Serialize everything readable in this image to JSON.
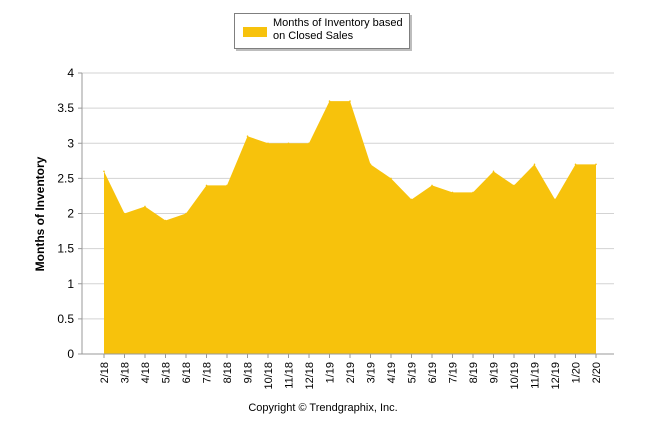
{
  "chart_data": {
    "type": "area",
    "ylabel": "Months of Inventory",
    "xlabel": "",
    "ylim": [
      0,
      4
    ],
    "yticks": [
      0,
      0.5,
      1,
      1.5,
      2,
      2.5,
      3,
      3.5,
      4
    ],
    "ytick_labels": [
      "0",
      "0.5",
      "1",
      "1.5",
      "2",
      "2.5",
      "3",
      "3.5",
      "4"
    ],
    "grid": true,
    "legend_position": "top-center",
    "categories": [
      "2/18",
      "3/18",
      "4/18",
      "5/18",
      "6/18",
      "7/18",
      "8/18",
      "9/18",
      "10/18",
      "11/18",
      "12/18",
      "1/19",
      "2/19",
      "3/19",
      "4/19",
      "5/19",
      "6/19",
      "7/19",
      "8/19",
      "9/19",
      "10/19",
      "11/19",
      "12/19",
      "1/20",
      "2/20"
    ],
    "series": [
      {
        "name": "Months of Inventory based on Closed Sales",
        "color": "#f7c20c",
        "values": [
          2.6,
          2.0,
          2.1,
          1.9,
          2.0,
          2.4,
          2.4,
          3.1,
          3.0,
          3.0,
          3.0,
          3.6,
          3.6,
          2.7,
          2.5,
          2.2,
          2.4,
          2.3,
          2.3,
          2.6,
          2.4,
          2.7,
          2.2,
          2.7,
          2.7
        ]
      }
    ]
  },
  "legend": {
    "label": "Months of Inventory based on Closed Sales"
  },
  "footer": {
    "copyright": "Copyright © Trendgraphix, Inc."
  },
  "colors": {
    "area": "#f7c20c",
    "gridline": "#d3d3d3",
    "axis": "#999999"
  }
}
